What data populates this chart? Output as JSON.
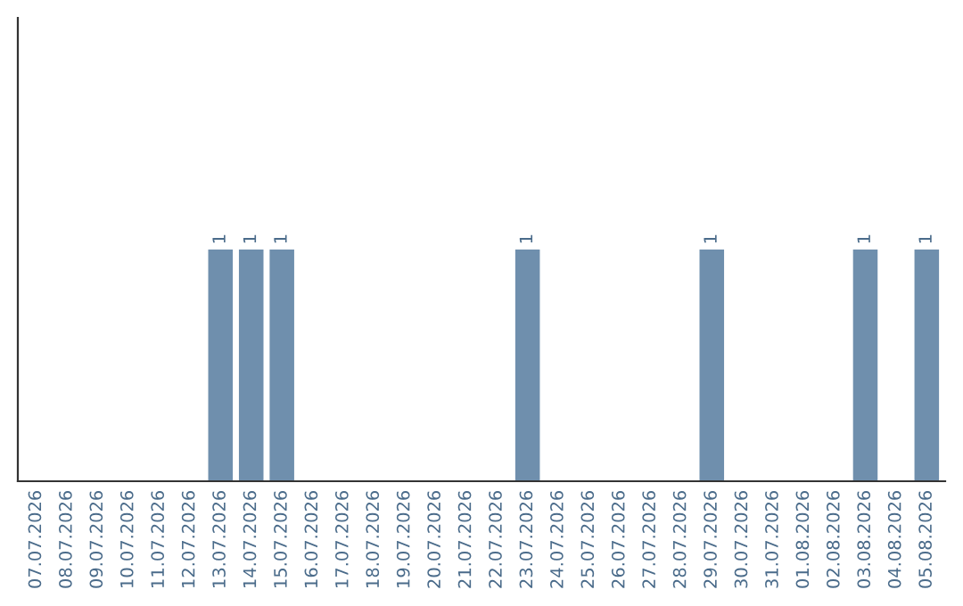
{
  "chart_data": {
    "type": "bar",
    "categories": [
      "07.07.2026",
      "08.07.2026",
      "09.07.2026",
      "10.07.2026",
      "11.07.2026",
      "12.07.2026",
      "13.07.2026",
      "14.07.2026",
      "15.07.2026",
      "16.07.2026",
      "17.07.2026",
      "18.07.2026",
      "19.07.2026",
      "20.07.2026",
      "21.07.2026",
      "22.07.2026",
      "23.07.2026",
      "24.07.2026",
      "25.07.2026",
      "26.07.2026",
      "27.07.2026",
      "28.07.2026",
      "29.07.2026",
      "30.07.2026",
      "31.07.2026",
      "01.08.2026",
      "02.08.2026",
      "03.08.2026",
      "04.08.2026",
      "05.08.2026"
    ],
    "values": [
      0,
      0,
      0,
      0,
      0,
      0,
      1,
      1,
      1,
      0,
      0,
      0,
      0,
      0,
      0,
      0,
      1,
      0,
      0,
      0,
      0,
      0,
      1,
      0,
      0,
      0,
      0,
      1,
      0,
      1
    ],
    "value_labels": [
      null,
      null,
      null,
      null,
      null,
      null,
      "1",
      "1",
      "1",
      null,
      null,
      null,
      null,
      null,
      null,
      null,
      "1",
      null,
      null,
      null,
      null,
      null,
      "1",
      null,
      null,
      null,
      null,
      "1",
      null,
      "1"
    ],
    "color": "#6f8fad",
    "ylim": [
      0,
      2
    ],
    "tick_labels": "x",
    "grid": false,
    "legend": false
  }
}
